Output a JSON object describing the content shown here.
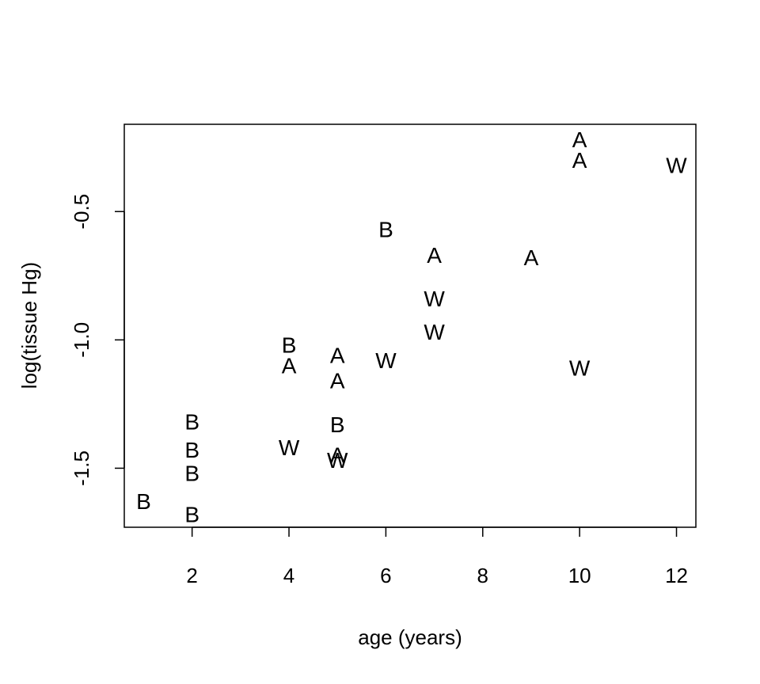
{
  "chart_data": {
    "type": "scatter",
    "title": "",
    "xlabel": "age (years)",
    "ylabel": "log(tissue Hg)",
    "xlim": [
      0.6,
      12.4
    ],
    "ylim": [
      -1.73,
      -0.16
    ],
    "xticks": [
      2,
      4,
      6,
      8,
      10,
      12
    ],
    "yticks": [
      -1.5,
      -1.0,
      -0.5
    ],
    "xtick_labels": [
      "2",
      "4",
      "6",
      "8",
      "10",
      "12"
    ],
    "ytick_labels": [
      "-1.5",
      "-1.0",
      "-0.5"
    ],
    "grid": false,
    "marker": "text-label",
    "points": [
      {
        "x": 1,
        "y": -1.63,
        "label": "B"
      },
      {
        "x": 2,
        "y": -1.32,
        "label": "B"
      },
      {
        "x": 2,
        "y": -1.43,
        "label": "B"
      },
      {
        "x": 2,
        "y": -1.52,
        "label": "B"
      },
      {
        "x": 2,
        "y": -1.68,
        "label": "B"
      },
      {
        "x": 4,
        "y": -1.02,
        "label": "B"
      },
      {
        "x": 4,
        "y": -1.1,
        "label": "A"
      },
      {
        "x": 4,
        "y": -1.42,
        "label": "W"
      },
      {
        "x": 5,
        "y": -1.06,
        "label": "A"
      },
      {
        "x": 5,
        "y": -1.16,
        "label": "A"
      },
      {
        "x": 5,
        "y": -1.33,
        "label": "B"
      },
      {
        "x": 5,
        "y": -1.45,
        "label": "A"
      },
      {
        "x": 5,
        "y": -1.47,
        "label": "W"
      },
      {
        "x": 6,
        "y": -0.57,
        "label": "B"
      },
      {
        "x": 6,
        "y": -1.08,
        "label": "W"
      },
      {
        "x": 7,
        "y": -0.67,
        "label": "A"
      },
      {
        "x": 7,
        "y": -0.84,
        "label": "W"
      },
      {
        "x": 7,
        "y": -0.97,
        "label": "W"
      },
      {
        "x": 9,
        "y": -0.68,
        "label": "A"
      },
      {
        "x": 10,
        "y": -0.22,
        "label": "A"
      },
      {
        "x": 10,
        "y": -0.3,
        "label": "A"
      },
      {
        "x": 10,
        "y": -1.11,
        "label": "W"
      },
      {
        "x": 12,
        "y": -0.32,
        "label": "W"
      }
    ]
  }
}
